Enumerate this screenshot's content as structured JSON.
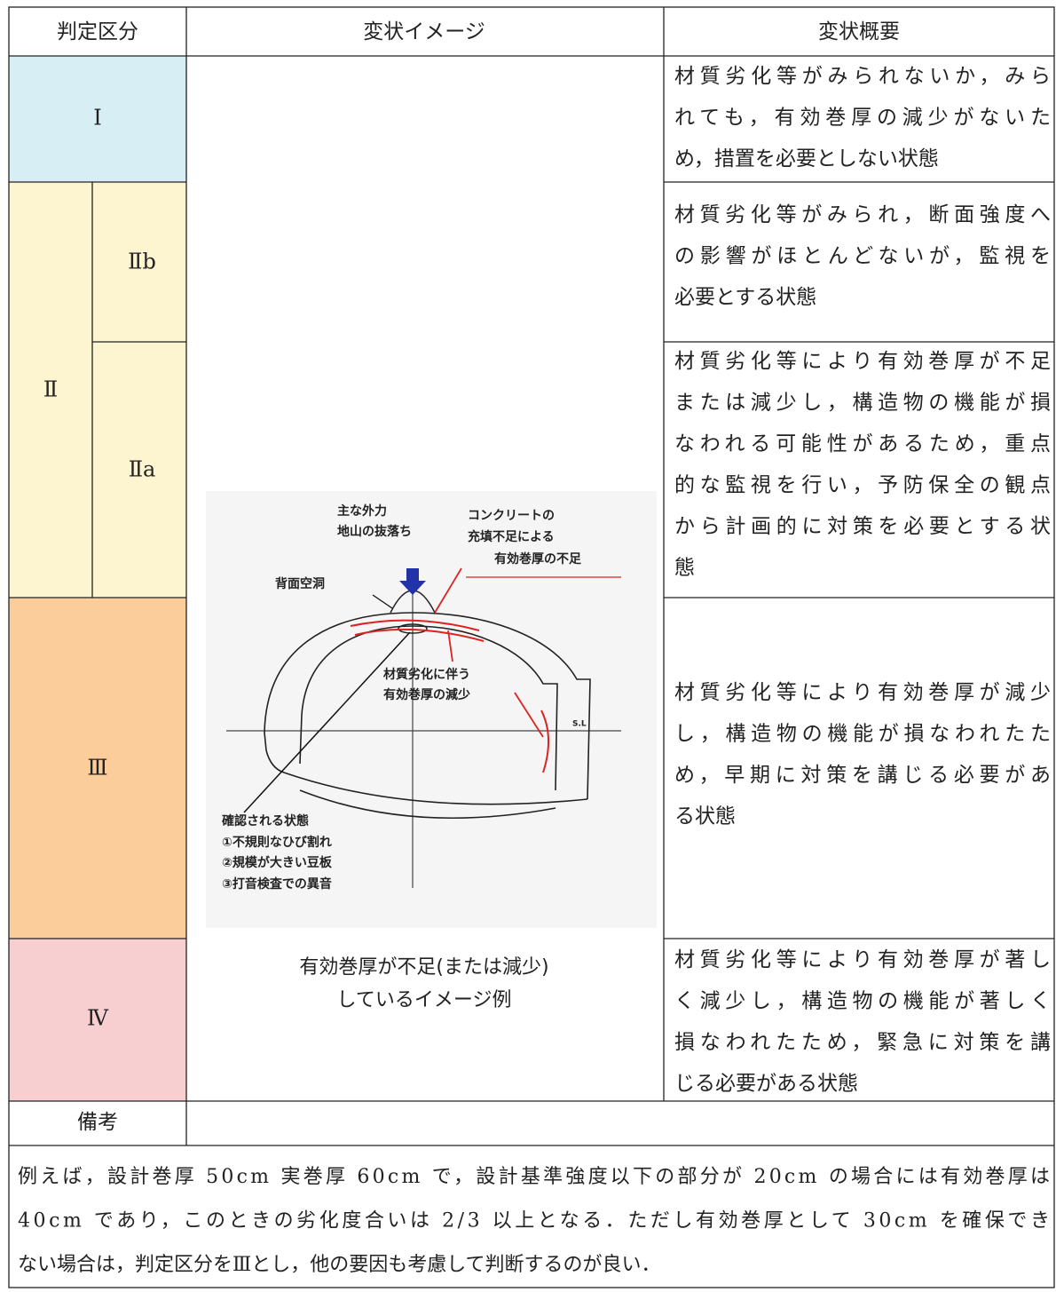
{
  "table": {
    "header": [
      "判定区分",
      "変状イメージ",
      "変状概要"
    ],
    "grades": [
      "Ⅰ",
      "Ⅱ",
      "Ⅱb",
      "Ⅱa",
      "Ⅲ",
      "Ⅳ"
    ],
    "descriptions": [
      [
        "材質劣化等がみられないか，みら",
        "れても，有効巻厚の減少がないた",
        "め，措置を必要としない状態"
      ],
      [
        "材質劣化等がみられ，断面強度へ",
        "の影響がほとんどないが，監視を",
        "必要とする状態"
      ],
      [
        "材質劣化等により有効巻厚が不足",
        "または減少し，構造物の機能が損",
        "なわれる可能性があるため，重点",
        "的な監視を行い，予防保全の観点",
        "から計画的に対策を必要とする状",
        "態"
      ],
      [
        "材質劣化等により有効巻厚が減少",
        "し，構造物の機能が損なわれたた",
        "め，早期に対策を講じる必要があ",
        "る状態"
      ],
      [
        "材質劣化等により有効巻厚が著し",
        "く減少し，構造物の機能が著しく",
        "損なわれたため，緊急に対策を講",
        "じる必要がある状態"
      ]
    ],
    "image": {
      "labels": [
        "主な外力",
        "地山の抜落ち",
        "コンクリートの",
        "充填不足による",
        "有効巻厚の不足",
        "背面空洞",
        "材質劣化に伴う",
        "有効巻厚の減少",
        "S.L",
        "確認される状態",
        "①不規則なひび割れ",
        "②規模が大きい豆板",
        "③打音検査での異音"
      ],
      "caption": [
        "有効巻厚が不足(または減少)",
        "しているイメージ例"
      ]
    },
    "remarks": {
      "label": "備考",
      "text": [
        "例えば，設計巻厚 50cm 実巻厚 60cm で，設計基準強度以下の部分が 20cm の場合には有効巻厚は",
        "40cm であり，このときの劣化度合いは 2/3 以上となる．ただし有効巻厚として 30cm を確保でき",
        "ない場合は，判定区分をⅢとし，他の要因も考慮して判断するのが良い．"
      ]
    }
  }
}
